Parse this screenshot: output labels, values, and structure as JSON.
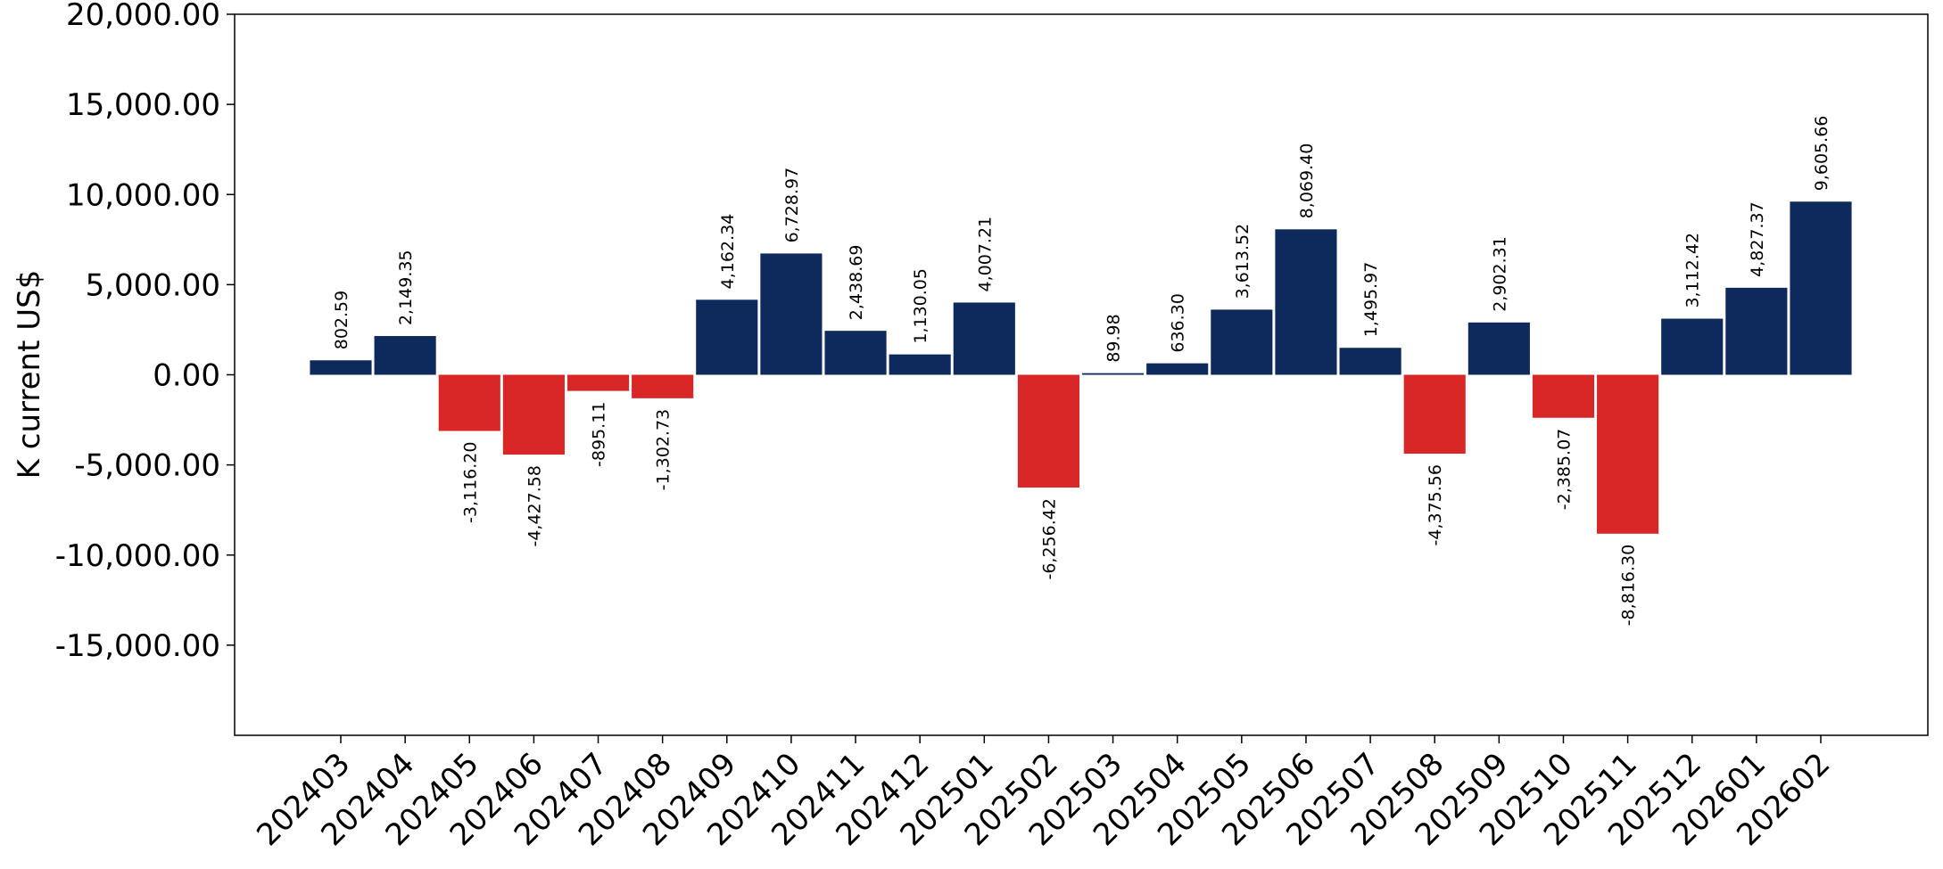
{
  "chart_data": {
    "type": "bar",
    "title": "",
    "xlabel": "",
    "ylabel": "K current US$",
    "ylim": [
      -20000,
      20000
    ],
    "yticks": [
      -15000,
      -10000,
      -5000,
      0,
      5000,
      10000,
      15000,
      20000
    ],
    "ytick_labels": [
      "-15,000.00",
      "-10,000.00",
      "-5,000.00",
      "0.00",
      "5,000.00",
      "10,000.00",
      "15,000.00",
      "20,000.00"
    ],
    "grid": false,
    "legend": "none",
    "colors": {
      "positive": "#0e2a5c",
      "negative": "#d92626"
    },
    "categories": [
      "202403",
      "202404",
      "202405",
      "202406",
      "202407",
      "202408",
      "202409",
      "202410",
      "202411",
      "202412",
      "202501",
      "202502",
      "202503",
      "202504",
      "202505",
      "202506",
      "202507",
      "202508",
      "202509",
      "202510",
      "202511",
      "202512",
      "202601",
      "202602"
    ],
    "values": [
      802.59,
      2149.35,
      -3116.2,
      -4427.58,
      -895.11,
      -1302.73,
      4162.34,
      6728.97,
      2438.69,
      1130.05,
      4007.21,
      -6256.42,
      89.98,
      636.3,
      3613.52,
      8069.4,
      1495.97,
      -4375.56,
      2902.31,
      -2385.07,
      -8816.3,
      3112.42,
      4827.37,
      9605.66
    ],
    "value_labels": [
      "802.59",
      "2,149.35",
      "-3,116.20",
      "-4,427.58",
      "-895.11",
      "-1,302.73",
      "4,162.34",
      "6,728.97",
      "2,438.69",
      "1,130.05",
      "4,007.21",
      "-6,256.42",
      "89.98",
      "636.30",
      "3,613.52",
      "8,069.40",
      "1,495.97",
      "-4,375.56",
      "2,902.31",
      "-2,385.07",
      "-8,816.30",
      "3,112.42",
      "4,827.37",
      "9,605.66"
    ]
  }
}
